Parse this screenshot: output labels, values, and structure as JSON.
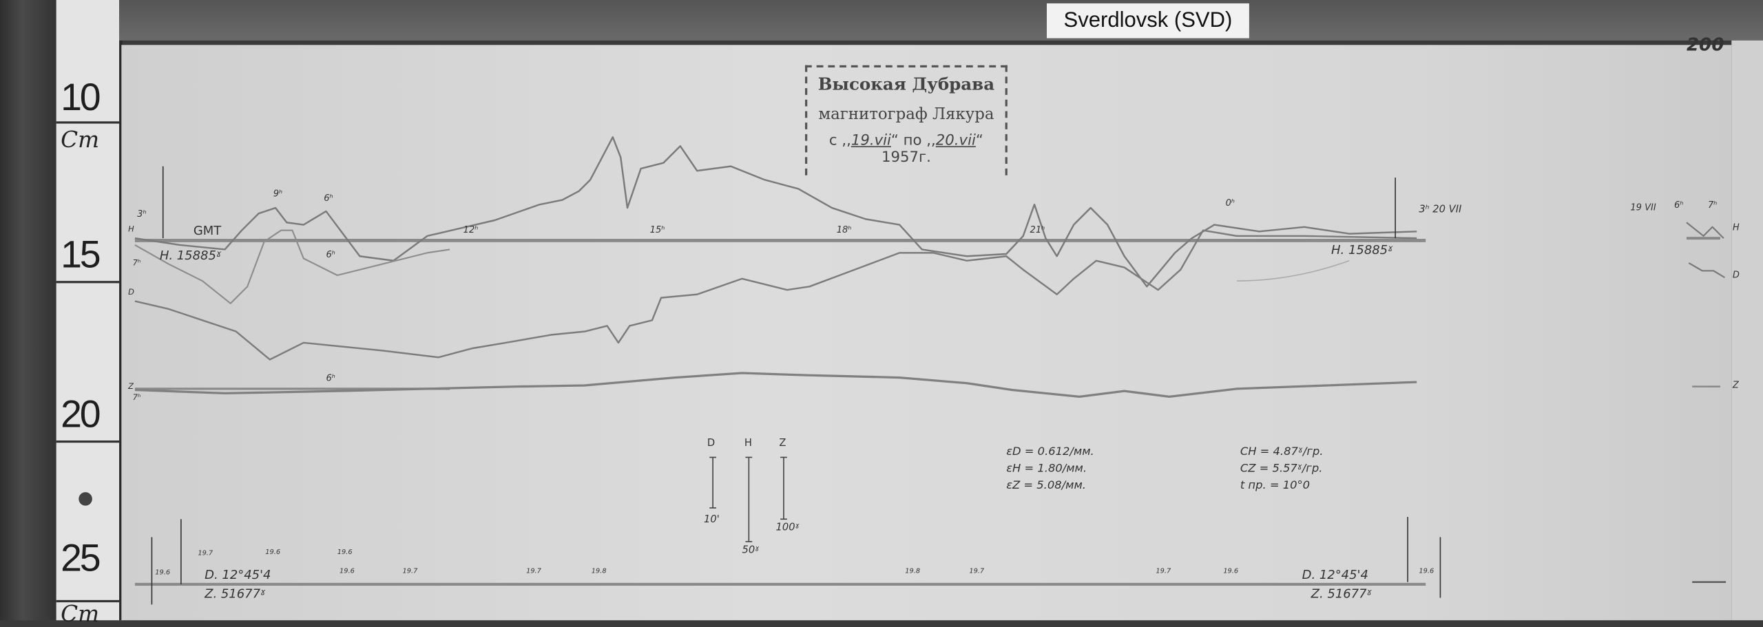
{
  "label": "Sverdlovsk (SVD)",
  "sheet_number": "200",
  "ruler": {
    "marks": [
      "10",
      "15",
      "20",
      "25"
    ],
    "unit": "Cm"
  },
  "stamp": {
    "station": "Высокая Дубрава",
    "instrument": "магнитограф Лякура",
    "from_prefix": "с ,,",
    "from_date": "19.vii",
    "to_prefix": "“ по ,,",
    "to_date": "20.vii",
    "year": "“ 1957г."
  },
  "left_labels": {
    "h3": "3ʰ",
    "h_top": "H",
    "gmt": "GMT",
    "h_base": "H. 15885ˠ",
    "h7": "7ʰ",
    "d": "D",
    "z": "Z",
    "z7": "7ʰ",
    "h9": "9ʰ",
    "h6": "6ʰ",
    "h6b": "6ʰ",
    "h6c": "6ʰ"
  },
  "hour_labels": [
    "12ʰ",
    "15ʰ",
    "18ʰ",
    "21ʰ",
    "0ʰ"
  ],
  "right_labels": {
    "h3_date": "3ʰ 20 VII",
    "h_base": "H. 15885ˠ"
  },
  "extra_strip": {
    "date": "19 VII",
    "h6": "6ʰ",
    "h7": "7ʰ",
    "H": "H",
    "D": "D",
    "Z": "Z"
  },
  "scale_bars": [
    {
      "component": "D",
      "value": "10'"
    },
    {
      "component": "H",
      "value": "50ˠ"
    },
    {
      "component": "Z",
      "value": "100ˠ"
    }
  ],
  "sensitivities": [
    "εD = 0.612/мм.",
    "εH = 1.80/мм.",
    "εZ = 5.08/мм."
  ],
  "coefficients": [
    "CH = 4.87ˠ/гр.",
    "CZ = 5.57ˠ/гр.",
    "t пр. = 10°0"
  ],
  "temperatures": [
    "19.6",
    "19.7",
    "19.6",
    "19.6",
    "19.6",
    "19.7",
    "19.7",
    "19.8",
    "19.8",
    "19.7",
    "19.7",
    "19.6",
    "19.6"
  ],
  "base_left": {
    "d": "D. 12°45'4",
    "z": "Z. 51677ˠ"
  },
  "base_right": {
    "d": "D. 12°45'4",
    "z": "Z. 51677ˠ"
  }
}
